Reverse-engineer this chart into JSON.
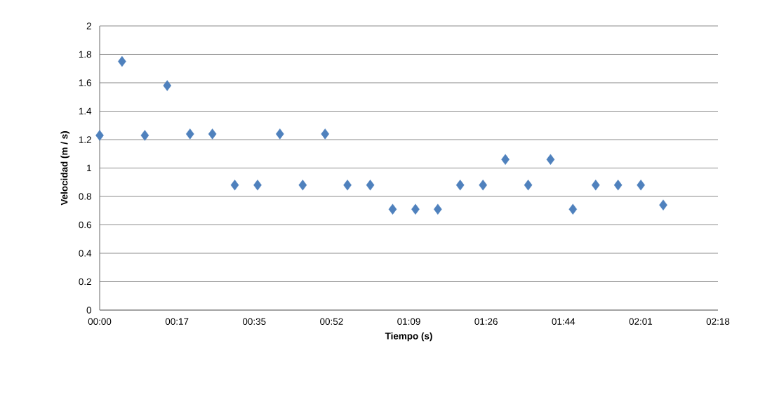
{
  "chart_data": {
    "type": "scatter",
    "xlabel": "Tiempo (s)",
    "ylabel": "Velocidad (m / s)",
    "x": [
      0,
      5.0,
      10.1,
      15.1,
      20.2,
      25.2,
      30.2,
      35.3,
      40.3,
      45.4,
      50.4,
      55.4,
      60.5,
      65.5,
      70.6,
      75.6,
      80.6,
      85.7,
      90.7,
      95.8,
      100.8,
      105.8,
      110.9,
      115.9,
      121.0,
      126.0
    ],
    "values": [
      1.23,
      1.75,
      1.23,
      1.58,
      1.24,
      1.24,
      0.88,
      0.88,
      1.24,
      0.88,
      1.24,
      0.88,
      0.88,
      0.71,
      0.71,
      0.71,
      0.88,
      0.88,
      1.06,
      0.88,
      1.06,
      0.71,
      0.88,
      0.88,
      0.88,
      0.74
    ],
    "color": "#4f81bd",
    "marker": "diamond",
    "grid": "y",
    "xlim": [
      0,
      138.24
    ],
    "xticks": [
      {
        "value": 0,
        "label": "00:00"
      },
      {
        "value": 17.28,
        "label": "00:17"
      },
      {
        "value": 34.56,
        "label": "00:35"
      },
      {
        "value": 51.84,
        "label": "00:52"
      },
      {
        "value": 69.12,
        "label": "01:09"
      },
      {
        "value": 86.4,
        "label": "01:26"
      },
      {
        "value": 103.68,
        "label": "01:44"
      },
      {
        "value": 120.96,
        "label": "02:01"
      },
      {
        "value": 138.24,
        "label": "02:18"
      }
    ],
    "ylim": [
      0,
      2
    ],
    "yticks": [
      0,
      0.2,
      0.4,
      0.6,
      0.8,
      1,
      1.2,
      1.4,
      1.6,
      1.8,
      2
    ]
  }
}
